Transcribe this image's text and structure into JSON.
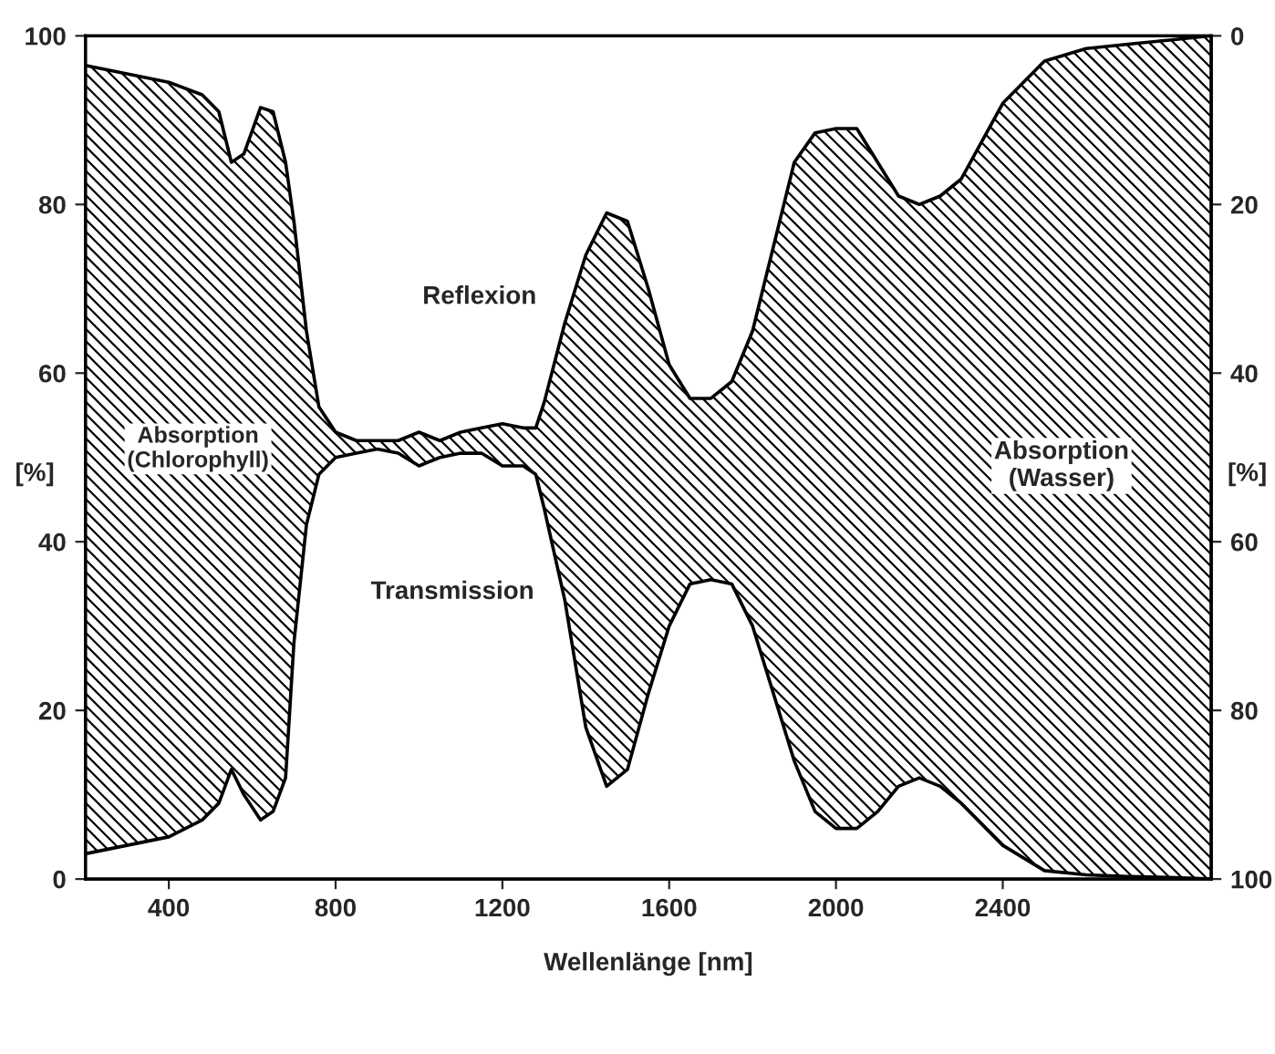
{
  "chart_data": {
    "type": "line",
    "xlabel": "Wellenlänge [nm]",
    "ylabel": "[%]",
    "y2label": "[%]",
    "x": [
      200,
      300,
      400,
      480,
      520,
      550,
      580,
      620,
      650,
      680,
      700,
      730,
      760,
      800,
      850,
      900,
      950,
      1000,
      1050,
      1100,
      1150,
      1200,
      1250,
      1280,
      1300,
      1350,
      1400,
      1450,
      1500,
      1550,
      1600,
      1650,
      1700,
      1750,
      1800,
      1850,
      1900,
      1950,
      2000,
      2050,
      2100,
      2150,
      2200,
      2250,
      2300,
      2400,
      2500,
      2600,
      2700,
      2800,
      2900
    ],
    "series": [
      {
        "color": "#000000",
        "values": [
          3,
          4,
          5,
          7,
          9,
          13,
          10,
          7,
          8,
          12,
          28,
          42,
          48,
          50,
          50.5,
          51,
          50.5,
          49,
          50,
          50.5,
          50.5,
          49,
          49,
          48,
          44,
          33,
          18,
          11,
          13,
          22,
          30,
          35,
          35.5,
          35,
          30,
          22,
          14,
          8,
          6,
          6,
          8,
          11,
          12,
          11,
          9,
          4,
          1,
          0.5,
          0.3,
          0.2,
          0
        ]
      },
      {
        "color": "#000000",
        "values": [
          96.5,
          95.5,
          94.5,
          93,
          91,
          85,
          86,
          91.5,
          91,
          85,
          78,
          65,
          56,
          53,
          52,
          52,
          52,
          53,
          52,
          53,
          53.5,
          54,
          53.5,
          53.5,
          56.5,
          66,
          74,
          79,
          78,
          70,
          61,
          57,
          57,
          59,
          65,
          75,
          85,
          88.5,
          89,
          89,
          85,
          81,
          80,
          81,
          83,
          92,
          97,
          98.5,
          99,
          99.5,
          100
        ],
        "upper": [
          96.5,
          95.5,
          94.5,
          93,
          91,
          85,
          86,
          91.5,
          91,
          85,
          78,
          65,
          56,
          53,
          52,
          52,
          52,
          53,
          52,
          53,
          53.5,
          54,
          53.5,
          53.5,
          56.5,
          66,
          74,
          79,
          78,
          70,
          61,
          57,
          57,
          59,
          65,
          75,
          85,
          88.5,
          89,
          89,
          85,
          81,
          80,
          81,
          83,
          92,
          97,
          98.5,
          99,
          99.5,
          100
        ],
        "lower": [
          3,
          4,
          5,
          7,
          9,
          13,
          10,
          7,
          8,
          12,
          28,
          42,
          48,
          50,
          50.5,
          51,
          50.5,
          49,
          50,
          50.5,
          50.5,
          49,
          49,
          48,
          44,
          33,
          18,
          11,
          13,
          22,
          30,
          35,
          35.5,
          35,
          30,
          22,
          14,
          8,
          6,
          6,
          8,
          11,
          12,
          11,
          9,
          4,
          1,
          0.5,
          0.3,
          0.2,
          0
        ]
      }
    ],
    "xlim": [
      200,
      2900
    ],
    "xticks": [
      400,
      800,
      1200,
      1600,
      2000,
      2400
    ],
    "ylim": [
      0,
      100
    ],
    "yticks": [
      0,
      20,
      40,
      60,
      80,
      100
    ],
    "y2lim": [
      100,
      0
    ],
    "y2ticks": [
      0,
      20,
      40,
      60,
      80,
      100
    ],
    "annotations": [
      "Reflexion",
      "Transmission",
      "Absorption\n(Chlorophyll)",
      "Absorption\n(Wasser)"
    ],
    "grid": false,
    "legend": false
  }
}
